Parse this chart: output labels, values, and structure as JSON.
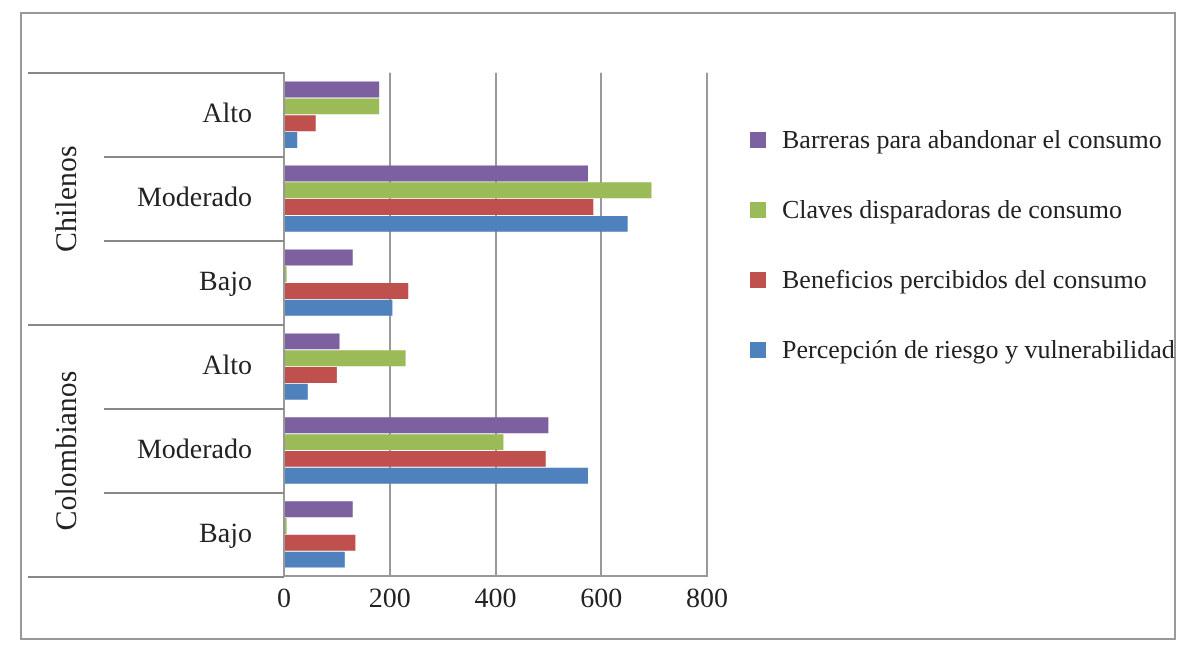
{
  "chart_data": {
    "type": "bar",
    "orientation": "horizontal",
    "categories": [
      "Alto",
      "Moderado",
      "Bajo",
      "Alto",
      "Moderado",
      "Bajo"
    ],
    "annotations": [
      "Chilenos",
      "Colombianos"
    ],
    "series": [
      {
        "name": "Barreras para abandonar el consumo",
        "color": "#7d60a0",
        "values": [
          180,
          575,
          130,
          105,
          500,
          130
        ]
      },
      {
        "name": "Claves disparadoras de consumo",
        "color": "#9bbb59",
        "values": [
          180,
          695,
          5,
          230,
          415,
          5
        ]
      },
      {
        "name": "Beneficios percibidos del consumo",
        "color": "#c0504d",
        "values": [
          60,
          585,
          235,
          100,
          495,
          135
        ]
      },
      {
        "name": "Percepción de riesgo y vulnerabilidad",
        "color": "#4f81bd",
        "values": [
          25,
          650,
          205,
          45,
          575,
          115
        ]
      }
    ],
    "xlim": [
      0,
      800
    ],
    "xticks": [
      0,
      200,
      400,
      600,
      800
    ],
    "grid": "x",
    "legend": "right"
  }
}
